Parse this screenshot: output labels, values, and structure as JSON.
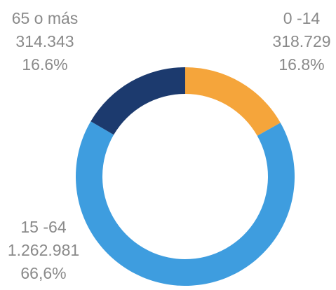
{
  "chart_data": {
    "type": "donut",
    "categories": [
      "0 -14",
      "15 -64",
      "65 o más"
    ],
    "values": [
      318729,
      1262981,
      314343
    ],
    "value_labels": [
      "318.729",
      "1.262.981",
      "314.343"
    ],
    "percent_labels": [
      "16.8%",
      "66,6%",
      "16.6%"
    ],
    "colors": [
      "#f5a53b",
      "#3e9ddf",
      "#1c3a6e"
    ]
  }
}
